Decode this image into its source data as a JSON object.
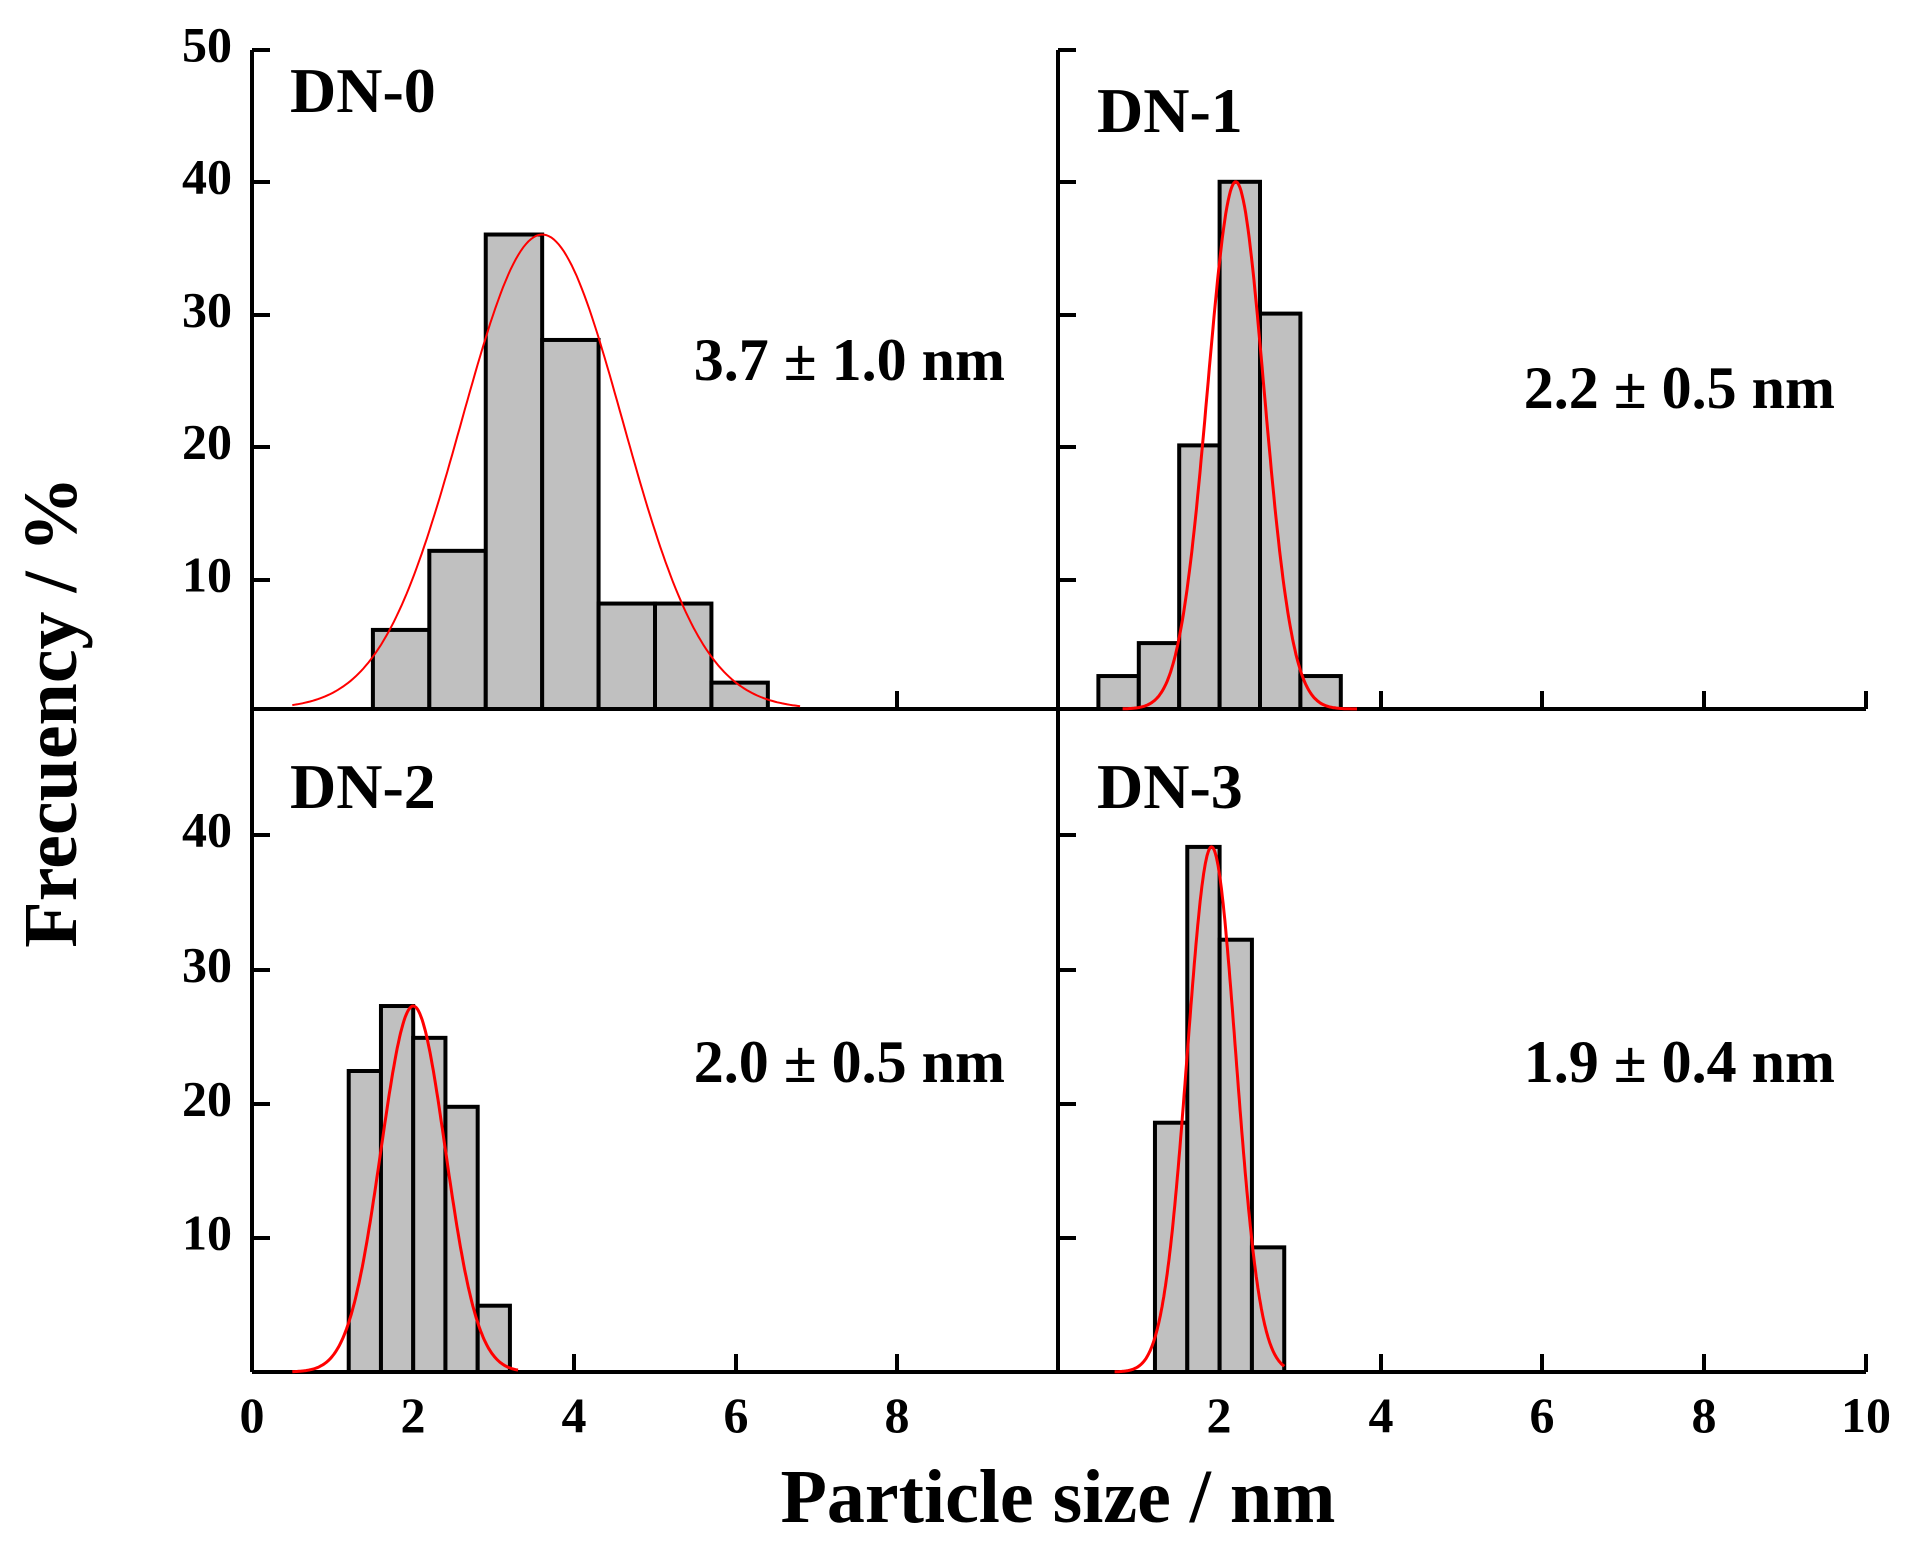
{
  "chart_data": {
    "type": "bar",
    "xlabel": "Particle size / nm",
    "ylabel": "Frecuency / %",
    "colors": {
      "bar_fill": "#c0c0c0",
      "bar_stroke": "#000000",
      "fit": "#ff0000",
      "axis": "#000000"
    },
    "x_ticks_left": [
      "0",
      "2",
      "4",
      "6",
      "8"
    ],
    "x_ticks_right": [
      "2",
      "4",
      "6",
      "8",
      "10"
    ],
    "y_ticks_top": [
      "10",
      "20",
      "30",
      "40",
      "50"
    ],
    "y_ticks_bottom": [
      "10",
      "20",
      "30",
      "40"
    ],
    "panels": [
      {
        "id": "dn0",
        "name": "DN-0",
        "stat": "3.7 ± 1.0 nm",
        "xlim": [
          0,
          10
        ],
        "ylim": [
          0,
          50
        ],
        "bins": [
          {
            "x0": 1.5,
            "x1": 2.2,
            "value": 6
          },
          {
            "x0": 2.2,
            "x1": 2.9,
            "value": 12
          },
          {
            "x0": 2.9,
            "x1": 3.6,
            "value": 36
          },
          {
            "x0": 3.6,
            "x1": 4.3,
            "value": 28
          },
          {
            "x0": 4.3,
            "x1": 5.0,
            "value": 8
          },
          {
            "x0": 5.0,
            "x1": 5.7,
            "value": 8
          },
          {
            "x0": 5.7,
            "x1": 6.4,
            "value": 2
          }
        ],
        "fit": {
          "mean": 3.6,
          "sigma": 1.0,
          "peak": 36,
          "xmin": 0.5,
          "xmax": 6.8
        }
      },
      {
        "id": "dn1",
        "name": "DN-1",
        "stat": "2.2 ± 0.5 nm",
        "xlim": [
          0,
          10
        ],
        "ylim": [
          0,
          50
        ],
        "bins": [
          {
            "x0": 0.5,
            "x1": 1.0,
            "value": 2.5
          },
          {
            "x0": 1.0,
            "x1": 1.5,
            "value": 5
          },
          {
            "x0": 1.5,
            "x1": 2.0,
            "value": 20
          },
          {
            "x0": 2.0,
            "x1": 2.5,
            "value": 40
          },
          {
            "x0": 2.5,
            "x1": 3.0,
            "value": 30
          },
          {
            "x0": 3.0,
            "x1": 3.5,
            "value": 2.5
          }
        ],
        "fit": {
          "mean": 2.2,
          "sigma": 0.35,
          "peak": 40,
          "xmin": 0.8,
          "xmax": 3.7
        }
      },
      {
        "id": "dn2",
        "name": "DN-2",
        "stat": "2.0 ± 0.5 nm",
        "xlim": [
          0,
          10
        ],
        "ylim": [
          0,
          50
        ],
        "bins": [
          {
            "x0": 1.2,
            "x1": 1.6,
            "value": 22.7
          },
          {
            "x0": 1.6,
            "x1": 2.0,
            "value": 27.6
          },
          {
            "x0": 2.0,
            "x1": 2.4,
            "value": 25.2
          },
          {
            "x0": 2.4,
            "x1": 2.8,
            "value": 20
          },
          {
            "x0": 2.8,
            "x1": 3.2,
            "value": 5
          }
        ],
        "fit": {
          "mean": 2.0,
          "sigma": 0.4,
          "peak": 27.6,
          "xmin": 0.5,
          "xmax": 3.3
        }
      },
      {
        "id": "dn3",
        "name": "DN-3",
        "stat": "1.9 ± 0.4 nm",
        "xlim": [
          0,
          10
        ],
        "ylim": [
          0,
          50
        ],
        "bins": [
          {
            "x0": 1.2,
            "x1": 1.6,
            "value": 18.8
          },
          {
            "x0": 1.6,
            "x1": 2.0,
            "value": 39.6
          },
          {
            "x0": 2.0,
            "x1": 2.4,
            "value": 32.6
          },
          {
            "x0": 2.4,
            "x1": 2.8,
            "value": 9.4
          }
        ],
        "fit": {
          "mean": 1.9,
          "sigma": 0.3,
          "peak": 39.6,
          "xmin": 0.7,
          "xmax": 2.8
        }
      }
    ]
  }
}
